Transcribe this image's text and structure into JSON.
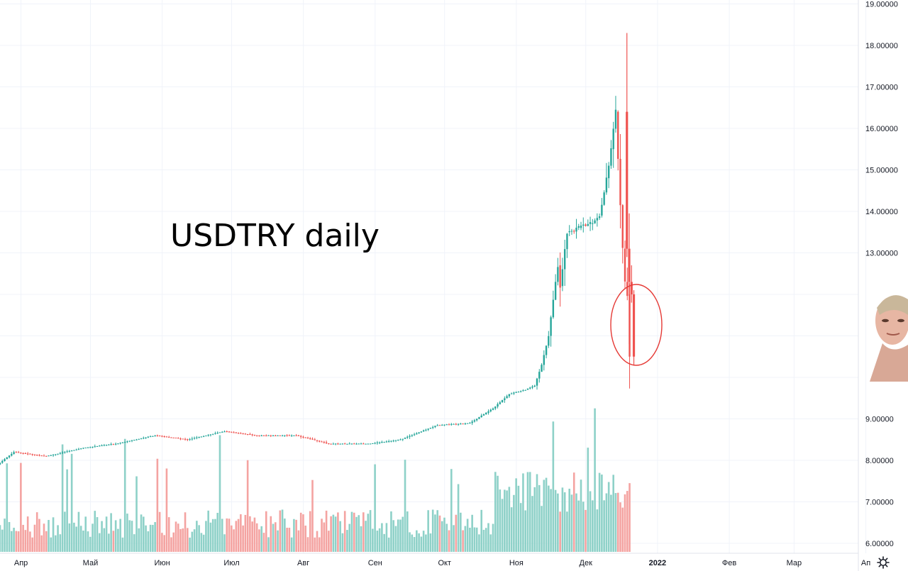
{
  "chart_data": {
    "type": "candlestick",
    "title": "",
    "annotation": "USDTRY daily",
    "y_axis": {
      "min": 6,
      "max": 19,
      "ticks": [
        6,
        7,
        8,
        9,
        13,
        14,
        15,
        16,
        17,
        18,
        19
      ],
      "tick_labels": [
        "6.00000",
        "7.00000",
        "8.00000",
        "9.00000",
        "13.00000",
        "14.00000",
        "15.00000",
        "16.00000",
        "17.00000",
        "18.00000",
        "19.00000"
      ]
    },
    "x_axis": {
      "tick_labels": [
        "Апр",
        "Май",
        "Июн",
        "Июл",
        "Авг",
        "Сен",
        "Окт",
        "Ноя",
        "Дек",
        "2022",
        "Фев",
        "Мар",
        "Ап"
      ]
    },
    "series": [
      {
        "name": "",
        "x": [
          "2021-03-25",
          "2021-04-01",
          "2021-04-15",
          "2021-05-01",
          "2021-05-15",
          "2021-06-01",
          "2021-06-15",
          "2021-07-01",
          "2021-07-15",
          "2021-08-01",
          "2021-08-15",
          "2021-09-01",
          "2021-09-15",
          "2021-10-01",
          "2021-10-15",
          "2021-10-25",
          "2021-11-01",
          "2021-11-08",
          "2021-11-12",
          "2021-11-15",
          "2021-11-18",
          "2021-11-22",
          "2021-11-23",
          "2021-11-26",
          "2021-12-01",
          "2021-12-06",
          "2021-12-10",
          "2021-12-13",
          "2021-12-15",
          "2021-12-17",
          "2021-12-20",
          "2021-12-21",
          "2021-12-22",
          "2021-12-23"
        ],
        "close": [
          7.9,
          8.2,
          8.1,
          8.3,
          8.4,
          8.6,
          8.5,
          8.7,
          8.6,
          8.6,
          8.4,
          8.4,
          8.5,
          8.85,
          8.9,
          9.25,
          9.6,
          9.7,
          9.8,
          10.3,
          11.0,
          12.7,
          12.2,
          13.5,
          13.6,
          13.7,
          13.9,
          14.8,
          15.5,
          16.4,
          13.1,
          12.3,
          12.0,
          10.5
        ],
        "high": [
          7.95,
          8.25,
          8.2,
          8.35,
          8.5,
          8.75,
          8.6,
          8.8,
          8.7,
          8.65,
          8.6,
          8.5,
          8.55,
          8.95,
          9.0,
          9.35,
          9.7,
          9.8,
          9.85,
          10.5,
          11.4,
          13.1,
          12.8,
          13.9,
          13.9,
          13.85,
          14.1,
          15.0,
          15.7,
          17.1,
          18.3,
          13.9,
          12.5,
          12.1
        ],
        "low": [
          7.75,
          8.05,
          8.0,
          8.15,
          8.3,
          8.5,
          8.3,
          8.6,
          8.55,
          8.5,
          8.3,
          8.25,
          8.35,
          8.75,
          8.85,
          9.1,
          9.45,
          9.55,
          9.7,
          10.0,
          10.6,
          11.7,
          11.6,
          12.4,
          13.2,
          13.4,
          13.7,
          14.3,
          14.7,
          15.3,
          12.9,
          10.8,
          10.1,
          10.3
        ]
      }
    ],
    "volume": [
      50,
      80,
      60,
      70,
      90,
      40,
      100,
      60,
      80,
      70,
      100,
      60,
      90,
      70,
      120,
      60,
      80,
      100,
      140,
      75,
      70,
      70,
      90,
      75,
      70,
      80,
      60,
      60,
      60,
      75,
      60,
      70,
      55,
      45
    ],
    "highlight": "red circle around final candles (2021-12-21 to 2021-12-23)",
    "colors": {
      "up": "#26a69a",
      "down": "#ef5350",
      "volume_up": "#8ed1c8",
      "volume_down": "#f4a3a1",
      "circle": "#e53935"
    },
    "grid": true,
    "legend": "none"
  },
  "ui": {
    "settings_icon": "gear-icon"
  }
}
